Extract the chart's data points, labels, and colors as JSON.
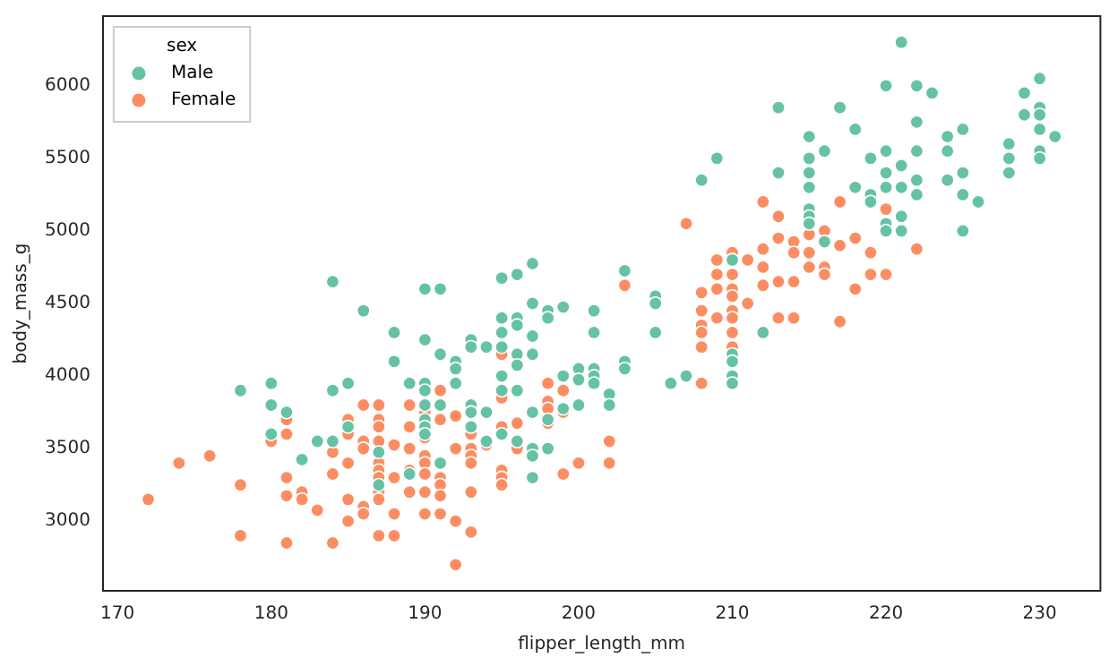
{
  "chart_data": {
    "type": "scatter",
    "xlabel": "flipper_length_mm",
    "ylabel": "body_mass_g",
    "legend_title": "sex",
    "legend": "top left",
    "grid": false,
    "marker": "circle",
    "xlim": [
      169.05,
      233.95
    ],
    "xticks": [
      170,
      180,
      190,
      200,
      210,
      220,
      230
    ],
    "ylim": [
      2520,
      6480
    ],
    "yticks": [
      3000,
      3500,
      4000,
      4500,
      5000,
      5500,
      6000
    ],
    "series": [
      {
        "name": "Male",
        "color": "#66c2a5",
        "x": [
          178,
          180,
          180,
          180,
          181,
          182,
          183,
          184,
          184,
          184,
          185,
          185,
          186,
          187,
          187,
          188,
          188,
          189,
          189,
          190,
          190,
          190,
          190,
          190,
          190,
          190,
          190,
          191,
          191,
          191,
          191,
          192,
          192,
          192,
          193,
          193,
          193,
          193,
          193,
          194,
          194,
          194,
          195,
          195,
          195,
          195,
          195,
          195,
          195,
          196,
          196,
          196,
          196,
          196,
          196,
          196,
          197,
          197,
          197,
          197,
          197,
          197,
          197,
          197,
          198,
          198,
          198,
          198,
          199,
          199,
          199,
          200,
          200,
          200,
          201,
          201,
          201,
          201,
          201,
          202,
          202,
          203,
          203,
          203,
          205,
          205,
          205,
          206,
          207,
          208,
          209,
          210,
          210,
          210,
          210,
          210,
          212,
          213,
          213,
          215,
          215,
          215,
          215,
          215,
          215,
          215,
          216,
          216,
          217,
          218,
          218,
          219,
          219,
          219,
          220,
          220,
          220,
          220,
          220,
          220,
          221,
          221,
          221,
          221,
          221,
          222,
          222,
          222,
          222,
          222,
          223,
          224,
          224,
          224,
          225,
          225,
          225,
          225,
          226,
          228,
          228,
          228,
          229,
          229,
          230,
          230,
          230,
          230,
          230,
          230,
          231
        ],
        "values": [
          3900,
          3950,
          3800,
          3600,
          3750,
          3425,
          3550,
          4650,
          3900,
          3550,
          3950,
          3650,
          4450,
          3475,
          3250,
          4300,
          4100,
          3950,
          3325,
          4600,
          4250,
          3950,
          3900,
          3800,
          3700,
          3650,
          3600,
          4600,
          4150,
          3800,
          3400,
          4100,
          4050,
          3950,
          4250,
          4200,
          3800,
          3750,
          3650,
          4200,
          3750,
          3550,
          4675,
          4400,
          4300,
          4200,
          4000,
          3900,
          3600,
          4700,
          4400,
          4350,
          4150,
          4075,
          3900,
          3550,
          4775,
          4500,
          4275,
          4150,
          3750,
          3500,
          3450,
          3300,
          4450,
          4400,
          3700,
          3500,
          4475,
          4000,
          3775,
          4050,
          3975,
          3800,
          4450,
          4300,
          4050,
          4000,
          3950,
          3875,
          3800,
          4725,
          4100,
          4050,
          4550,
          4500,
          4300,
          3950,
          4000,
          5350,
          5500,
          4800,
          4150,
          4100,
          4000,
          3950,
          4300,
          5850,
          5400,
          5650,
          5500,
          5400,
          5300,
          5150,
          5100,
          5050,
          5550,
          4925,
          5850,
          5700,
          5300,
          5500,
          5250,
          5200,
          6000,
          5550,
          5400,
          5300,
          5050,
          5000,
          6300,
          5450,
          5300,
          5100,
          5000,
          6000,
          5750,
          5550,
          5350,
          5250,
          5950,
          5650,
          5550,
          5350,
          5700,
          5400,
          5250,
          5000,
          5200,
          5600,
          5500,
          5400,
          5950,
          5800,
          6050,
          5850,
          5800,
          5700,
          5550,
          5500,
          5650
        ]
      },
      {
        "name": "Female",
        "color": "#fc8d62",
        "x": [
          172,
          174,
          176,
          178,
          178,
          180,
          181,
          181,
          181,
          181,
          181,
          182,
          182,
          183,
          184,
          184,
          184,
          185,
          185,
          185,
          185,
          185,
          186,
          186,
          186,
          186,
          186,
          187,
          187,
          187,
          187,
          187,
          187,
          187,
          187,
          187,
          187,
          188,
          188,
          188,
          188,
          189,
          189,
          189,
          189,
          189,
          190,
          190,
          190,
          190,
          190,
          190,
          190,
          191,
          191,
          191,
          191,
          191,
          191,
          192,
          192,
          192,
          192,
          193,
          193,
          193,
          193,
          193,
          193,
          194,
          195,
          195,
          195,
          195,
          195,
          195,
          196,
          196,
          198,
          198,
          198,
          198,
          199,
          199,
          199,
          200,
          202,
          202,
          203,
          207,
          208,
          208,
          208,
          208,
          208,
          208,
          209,
          209,
          209,
          209,
          210,
          210,
          210,
          210,
          210,
          210,
          210,
          210,
          211,
          211,
          212,
          212,
          212,
          212,
          213,
          213,
          213,
          213,
          214,
          214,
          214,
          214,
          215,
          215,
          215,
          216,
          216,
          216,
          217,
          217,
          217,
          218,
          218,
          219,
          219,
          220,
          220,
          222
        ],
        "values": [
          3150,
          3400,
          3450,
          3250,
          2900,
          3550,
          3700,
          3600,
          3300,
          3175,
          2850,
          3200,
          3150,
          3075,
          3475,
          3325,
          2850,
          3700,
          3600,
          3400,
          3150,
          3000,
          3800,
          3550,
          3500,
          3100,
          3050,
          3800,
          3700,
          3650,
          3550,
          3400,
          3350,
          3300,
          3200,
          3150,
          2900,
          3525,
          3300,
          3050,
          2900,
          3800,
          3650,
          3500,
          3350,
          3200,
          3750,
          3575,
          3450,
          3400,
          3325,
          3200,
          3050,
          3900,
          3700,
          3300,
          3250,
          3175,
          3050,
          3725,
          3500,
          3000,
          2700,
          3600,
          3500,
          3450,
          3400,
          3200,
          2925,
          3525,
          4150,
          3850,
          3650,
          3350,
          3300,
          3250,
          3675,
          3500,
          3950,
          3825,
          3775,
          3675,
          3900,
          3750,
          3325,
          3400,
          3550,
          3400,
          4625,
          5050,
          4575,
          4450,
          4350,
          4300,
          4200,
          3950,
          4800,
          4700,
          4600,
          4400,
          4850,
          4700,
          4600,
          4550,
          4450,
          4400,
          4300,
          4200,
          4800,
          4500,
          5200,
          4875,
          4750,
          4625,
          5100,
          4950,
          4650,
          4400,
          4925,
          4850,
          4650,
          4400,
          4975,
          4850,
          4750,
          5000,
          4750,
          4700,
          5200,
          4900,
          4375,
          4950,
          4600,
          4850,
          4700,
          5150,
          4700,
          4875
        ]
      }
    ]
  }
}
